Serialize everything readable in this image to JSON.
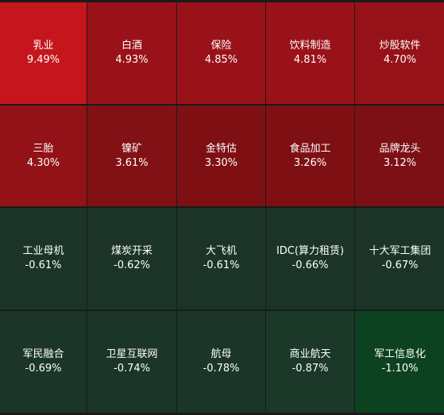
{
  "tiles": [
    {
      "name": "乳业",
      "change": "9.49%",
      "color": "#c4161c"
    },
    {
      "name": "白酒",
      "change": "4.93%",
      "color": "#9a1219"
    },
    {
      "name": "保险",
      "change": "4.85%",
      "color": "#9a1219"
    },
    {
      "name": "饮料制造",
      "change": "4.81%",
      "color": "#9a1219"
    },
    {
      "name": "炒股软件",
      "change": "4.70%",
      "color": "#961218"
    },
    {
      "name": "三胎",
      "change": "4.30%",
      "color": "#931218"
    },
    {
      "name": "镍矿",
      "change": "3.61%",
      "color": "#821115"
    },
    {
      "name": "金特估",
      "change": "3.30%",
      "color": "#7e1014"
    },
    {
      "name": "食品加工",
      "change": "3.26%",
      "color": "#7e1014"
    },
    {
      "name": "品牌龙头",
      "change": "3.12%",
      "color": "#7c1014"
    },
    {
      "name": "工业母机",
      "change": "-0.61%",
      "color": "#1b3427"
    },
    {
      "name": "煤炭开采",
      "change": "-0.62%",
      "color": "#1b3427"
    },
    {
      "name": "大飞机",
      "change": "-0.61%",
      "color": "#1b3427"
    },
    {
      "name": "IDC(算力租赁)",
      "change": "-0.66%",
      "color": "#1b3427"
    },
    {
      "name": "十大军工集团",
      "change": "-0.67%",
      "color": "#1b3427"
    },
    {
      "name": "军民融合",
      "change": "-0.69%",
      "color": "#1b3528"
    },
    {
      "name": "卫星互联网",
      "change": "-0.74%",
      "color": "#1b3528"
    },
    {
      "name": "航母",
      "change": "-0.78%",
      "color": "#1b3628"
    },
    {
      "name": "商业航天",
      "change": "-0.87%",
      "color": "#1b3829"
    },
    {
      "name": "军工信息化",
      "change": "-1.10%",
      "color": "#0c4220"
    }
  ]
}
